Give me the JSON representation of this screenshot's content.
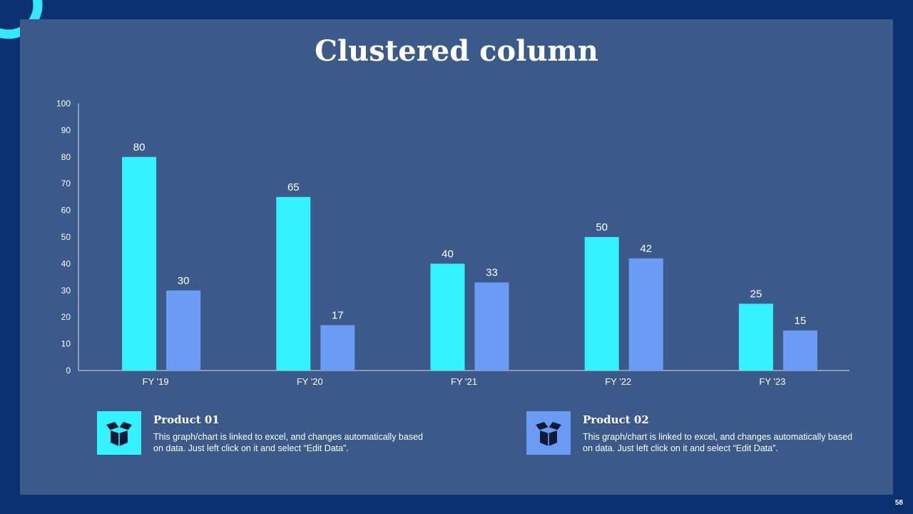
{
  "slide": {
    "title": "Clustered column",
    "page_number": "58"
  },
  "colors": {
    "background": "#0b3170",
    "panel": "#3b5a8a",
    "accent_ring": "#33e8fb",
    "product_01": "#33f2fd",
    "product_02": "#6b9cf3"
  },
  "legend": [
    {
      "title": "Product 01",
      "text": "This graph/chart is linked to excel, and changes automatically based on data. Just left click on it and select “Edit Data”.",
      "icon": "open-box-icon"
    },
    {
      "title": "Product 02",
      "text": "This graph/chart is linked to excel, and changes automatically based on data. Just left click on it and select “Edit Data”.",
      "icon": "open-box-icon"
    }
  ],
  "chart_data": {
    "type": "bar",
    "title": "",
    "xlabel": "",
    "ylabel": "",
    "categories": [
      "FY '19",
      "FY '20",
      "FY '21",
      "FY '22",
      "FY '23"
    ],
    "series": [
      {
        "name": "Product 01",
        "values": [
          80,
          65,
          40,
          50,
          25
        ]
      },
      {
        "name": "Product 02",
        "values": [
          30,
          17,
          33,
          42,
          15
        ]
      }
    ],
    "ylim": [
      0,
      100
    ],
    "yticks": [
      0,
      10,
      20,
      30,
      40,
      50,
      60,
      70,
      80,
      90,
      100
    ],
    "grid": false,
    "data_labels": true,
    "legend_placement": "bottom"
  }
}
